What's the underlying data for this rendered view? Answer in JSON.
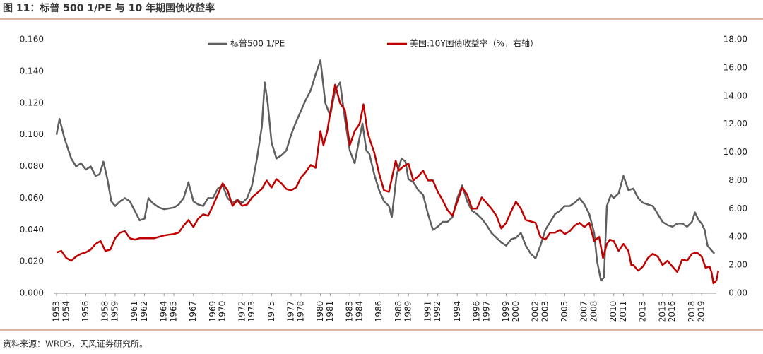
{
  "chart_data": {
    "type": "line",
    "title": "图 11：标普 500 1/PE 与 10 年期国债收益率",
    "source": "资料来源：WRDS，天风证券研究所。",
    "legend": "top",
    "xlim": [
      1953,
      2020.5
    ],
    "xticks": [
      1953,
      1954,
      1956,
      1958,
      1959,
      1961,
      1962,
      1964,
      1965,
      1967,
      1969,
      1970,
      1972,
      1973,
      1975,
      1977,
      1978,
      1980,
      1981,
      1983,
      1984,
      1986,
      1988,
      1989,
      1991,
      1992,
      1994,
      1996,
      1997,
      1999,
      2000,
      2002,
      2003,
      2005,
      2007,
      2008,
      2010,
      2011,
      2013,
      2015,
      2016,
      2018,
      2019
    ],
    "ylim": [
      0,
      0.16
    ],
    "yticks": [
      {
        "value": 0,
        "label": "0.000"
      },
      {
        "value": 0.02,
        "label": "0.020"
      },
      {
        "value": 0.04,
        "label": "0.040"
      },
      {
        "value": 0.06,
        "label": "0.060"
      },
      {
        "value": 0.08,
        "label": "0.080"
      },
      {
        "value": 0.1,
        "label": "0.100"
      },
      {
        "value": 0.12,
        "label": "0.120"
      },
      {
        "value": 0.14,
        "label": "0.140"
      },
      {
        "value": 0.16,
        "label": "0.160"
      }
    ],
    "y2lim": [
      0,
      18
    ],
    "y2ticks": [
      {
        "value": 0,
        "label": "0.00"
      },
      {
        "value": 2,
        "label": "2.00"
      },
      {
        "value": 4,
        "label": "4.00"
      },
      {
        "value": 6,
        "label": "6.00"
      },
      {
        "value": 8,
        "label": "8.00"
      },
      {
        "value": 10,
        "label": "10.00"
      },
      {
        "value": 12,
        "label": "12.00"
      },
      {
        "value": 14,
        "label": "14.00"
      },
      {
        "value": 16,
        "label": "16.00"
      },
      {
        "value": 18,
        "label": "18.00"
      }
    ],
    "series": [
      {
        "name": "标普500 1/PE",
        "color": "#5f5f5f",
        "x": [
          1953.0,
          1953.3,
          1953.8,
          1954.5,
          1955,
          1955.5,
          1956,
          1956.5,
          1957,
          1957.4,
          1957.8,
          1958.2,
          1958.6,
          1959,
          1959.5,
          1960,
          1960.5,
          1961,
          1961.5,
          1962,
          1962.4,
          1962.8,
          1963.5,
          1964,
          1965,
          1965.5,
          1966,
          1966.5,
          1967,
          1967.5,
          1968,
          1968.5,
          1969,
          1969.5,
          1970,
          1970.5,
          1971,
          1971.5,
          1972,
          1972.5,
          1973,
          1973.5,
          1974,
          1974.3,
          1974.6,
          1975,
          1975.5,
          1976,
          1976.5,
          1977,
          1977.5,
          1978,
          1978.5,
          1979,
          1979.5,
          1980,
          1980.5,
          1981,
          1981.5,
          1982,
          1982.5,
          1983,
          1983.5,
          1984,
          1984.3,
          1984.7,
          1985,
          1985.5,
          1986,
          1986.5,
          1987,
          1987.3,
          1987.8,
          1988.3,
          1988.7,
          1989,
          1989.5,
          1990,
          1990.5,
          1991,
          1991.5,
          1992,
          1992.5,
          1993,
          1993.5,
          1994,
          1994.5,
          1995,
          1995.5,
          1996,
          1996.5,
          1997,
          1997.5,
          1998,
          1998.5,
          1999,
          1999.5,
          2000,
          2000.5,
          2001,
          2001.5,
          2002,
          2002.5,
          2003,
          2003.5,
          2004,
          2004.5,
          2005,
          2005.5,
          2006,
          2006.5,
          2007,
          2007.5,
          2008,
          2008.3,
          2008.7,
          2009,
          2009.3,
          2009.7,
          2010,
          2010.5,
          2011,
          2011.5,
          2012,
          2012.5,
          2013,
          2013.5,
          2014,
          2014.5,
          2015,
          2015.5,
          2016,
          2016.5,
          2017,
          2017.5,
          2018,
          2018.3,
          2018.7,
          2019,
          2019.3,
          2019.6,
          2020,
          2020.3
        ],
        "values": [
          0.1,
          0.11,
          0.098,
          0.085,
          0.08,
          0.082,
          0.078,
          0.08,
          0.074,
          0.075,
          0.083,
          0.072,
          0.058,
          0.055,
          0.058,
          0.06,
          0.058,
          0.052,
          0.046,
          0.047,
          0.06,
          0.057,
          0.054,
          0.053,
          0.054,
          0.056,
          0.06,
          0.07,
          0.058,
          0.056,
          0.055,
          0.06,
          0.06,
          0.066,
          0.068,
          0.06,
          0.057,
          0.059,
          0.057,
          0.06,
          0.068,
          0.085,
          0.105,
          0.133,
          0.12,
          0.095,
          0.085,
          0.087,
          0.09,
          0.1,
          0.108,
          0.115,
          0.122,
          0.128,
          0.138,
          0.147,
          0.12,
          0.112,
          0.128,
          0.133,
          0.11,
          0.09,
          0.082,
          0.098,
          0.107,
          0.09,
          0.088,
          0.075,
          0.065,
          0.058,
          0.055,
          0.048,
          0.075,
          0.085,
          0.083,
          0.072,
          0.07,
          0.065,
          0.062,
          0.05,
          0.04,
          0.042,
          0.045,
          0.045,
          0.048,
          0.06,
          0.068,
          0.058,
          0.052,
          0.05,
          0.047,
          0.043,
          0.038,
          0.035,
          0.032,
          0.03,
          0.034,
          0.035,
          0.038,
          0.03,
          0.025,
          0.022,
          0.03,
          0.04,
          0.045,
          0.05,
          0.052,
          0.055,
          0.055,
          0.057,
          0.06,
          0.056,
          0.05,
          0.038,
          0.02,
          0.008,
          0.01,
          0.055,
          0.062,
          0.06,
          0.063,
          0.074,
          0.065,
          0.066,
          0.06,
          0.057,
          0.056,
          0.055,
          0.05,
          0.045,
          0.043,
          0.042,
          0.044,
          0.044,
          0.042,
          0.045,
          0.051,
          0.046,
          0.044,
          0.04,
          0.03,
          0.027,
          0.025
        ]
      },
      {
        "name": "美国:10Y国债收益率（%，右轴）",
        "color": "#c00000",
        "axis": "y2",
        "x": [
          1953.0,
          1953.5,
          1954,
          1954.5,
          1955,
          1955.5,
          1956,
          1956.5,
          1957,
          1957.5,
          1958,
          1958.5,
          1959,
          1959.5,
          1960,
          1960.5,
          1961,
          1961.5,
          1962,
          1962.5,
          1963,
          1963.5,
          1964,
          1965,
          1965.5,
          1966,
          1966.5,
          1967,
          1967.5,
          1968,
          1968.5,
          1969,
          1969.5,
          1970,
          1970.5,
          1971,
          1971.5,
          1972,
          1972.5,
          1973,
          1973.5,
          1974,
          1974.5,
          1975,
          1975.5,
          1976,
          1976.5,
          1977,
          1977.5,
          1978,
          1978.5,
          1979,
          1979.5,
          1980,
          1980.3,
          1980.7,
          1981,
          1981.5,
          1982,
          1982.5,
          1983,
          1983.5,
          1984,
          1984.4,
          1984.8,
          1985,
          1985.5,
          1986,
          1986.5,
          1987,
          1987.7,
          1988,
          1988.5,
          1989,
          1989.5,
          1990,
          1990.5,
          1991,
          1991.5,
          1992,
          1992.5,
          1993,
          1993.5,
          1994,
          1994.5,
          1995,
          1995.5,
          1996,
          1996.5,
          1997,
          1997.5,
          1998,
          1998.5,
          1999,
          1999.5,
          2000,
          2000.5,
          2001,
          2001.5,
          2002,
          2002.5,
          2003,
          2003.5,
          2004,
          2004.5,
          2005,
          2005.5,
          2006,
          2006.5,
          2007,
          2007.5,
          2008,
          2008.5,
          2008.9,
          2009.3,
          2009.6,
          2010,
          2010.5,
          2011,
          2011.5,
          2011.8,
          2012,
          2012.5,
          2013,
          2013.5,
          2014,
          2014.5,
          2015,
          2015.5,
          2016,
          2016.5,
          2017,
          2017.5,
          2018,
          2018.5,
          2019,
          2019.4,
          2019.8,
          2020,
          2020.2,
          2020.5,
          2020.7
        ],
        "values": [
          2.9,
          3.0,
          2.5,
          2.3,
          2.6,
          2.8,
          2.9,
          3.1,
          3.5,
          3.7,
          3.0,
          3.1,
          3.9,
          4.3,
          4.4,
          3.9,
          3.8,
          3.9,
          3.9,
          3.9,
          3.9,
          4.0,
          4.1,
          4.2,
          4.3,
          4.8,
          5.2,
          4.7,
          5.3,
          5.6,
          5.5,
          6.2,
          7.0,
          7.8,
          7.3,
          6.2,
          6.6,
          6.2,
          6.3,
          6.8,
          7.1,
          7.4,
          8.0,
          7.5,
          8.1,
          7.8,
          7.4,
          7.3,
          7.5,
          8.2,
          8.6,
          9.1,
          8.9,
          11.5,
          10.5,
          11.5,
          12.8,
          14.8,
          13.5,
          13.0,
          10.5,
          11.5,
          12.0,
          13.4,
          11.5,
          11.0,
          10.0,
          8.5,
          7.3,
          7.2,
          9.4,
          8.7,
          9.0,
          9.2,
          8.0,
          8.3,
          8.7,
          8.0,
          8.0,
          7.2,
          6.6,
          5.9,
          5.5,
          6.5,
          7.5,
          7.0,
          6.0,
          6.0,
          6.8,
          6.4,
          6.0,
          5.5,
          4.6,
          5.0,
          5.8,
          6.5,
          6.0,
          5.2,
          5.1,
          5.0,
          4.0,
          3.8,
          4.3,
          4.3,
          4.5,
          4.2,
          4.4,
          4.8,
          5.0,
          4.7,
          5.0,
          3.7,
          4.0,
          2.5,
          3.5,
          3.8,
          3.7,
          3.0,
          3.5,
          3.0,
          2.0,
          2.0,
          1.6,
          1.9,
          2.5,
          2.8,
          2.6,
          2.0,
          2.3,
          1.9,
          1.5,
          2.4,
          2.3,
          2.8,
          2.9,
          2.6,
          1.8,
          1.9,
          1.5,
          0.7,
          0.9,
          1.6
        ]
      }
    ]
  }
}
